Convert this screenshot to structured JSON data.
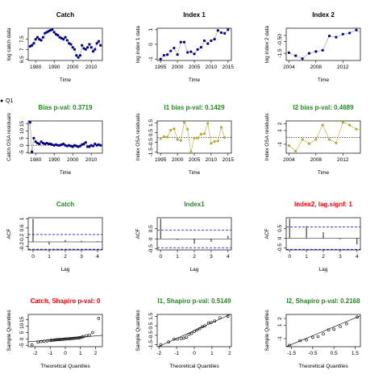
{
  "legend": {
    "marker": "●",
    "label": "Q1"
  },
  "colors": {
    "black": "#000000",
    "navy": "#00008b",
    "green": "#228b22",
    "red": "#ff0000",
    "blue": "#0000ff",
    "olive": "#b8a93a",
    "grey": "#999999"
  },
  "chart_data": [
    {
      "id": "catch",
      "type": "line",
      "title": "Catch",
      "title_color": "black",
      "xlabel": "Time",
      "ylabel": "log catch data",
      "xlim": [
        1976,
        2016
      ],
      "xticks": [
        1980,
        1990,
        2000,
        2010
      ],
      "ylim": [
        6.45,
        8.05
      ],
      "yticks": [
        6.5,
        7.0,
        7.5
      ],
      "points": [
        [
          1977,
          7.15
        ],
        [
          1978,
          7.2
        ],
        [
          1979,
          7.3
        ],
        [
          1980,
          7.5
        ],
        [
          1981,
          7.6
        ],
        [
          1982,
          7.5
        ],
        [
          1983,
          7.45
        ],
        [
          1984,
          7.6
        ],
        [
          1985,
          7.8
        ],
        [
          1986,
          7.85
        ],
        [
          1987,
          7.9
        ],
        [
          1988,
          7.95
        ],
        [
          1989,
          7.98
        ],
        [
          1990,
          7.85
        ],
        [
          1991,
          7.75
        ],
        [
          1992,
          7.7
        ],
        [
          1993,
          7.6
        ],
        [
          1994,
          7.55
        ],
        [
          1995,
          7.5
        ],
        [
          1996,
          7.6
        ],
        [
          1997,
          7.45
        ],
        [
          1998,
          7.3
        ],
        [
          1999,
          7.25
        ],
        [
          2000,
          7.1
        ],
        [
          2001,
          7.0
        ],
        [
          2002,
          6.7
        ],
        [
          2003,
          6.6
        ],
        [
          2004,
          6.7
        ],
        [
          2005,
          7.2
        ],
        [
          2006,
          7.05
        ],
        [
          2007,
          7.0
        ],
        [
          2008,
          7.1
        ],
        [
          2009,
          7.25
        ],
        [
          2010,
          7.1
        ],
        [
          2011,
          6.9
        ],
        [
          2012,
          7.0
        ],
        [
          2013,
          7.3
        ],
        [
          2014,
          7.4
        ],
        [
          2015,
          7.2
        ]
      ]
    },
    {
      "id": "index1",
      "type": "line",
      "title": "Index 1",
      "title_color": "black",
      "xlabel": "Time",
      "ylabel": "log index 1 data",
      "xlim": [
        1994,
        2016
      ],
      "xticks": [
        1995,
        2000,
        2005,
        2010,
        2015
      ],
      "ylim": [
        -1.1,
        1.1
      ],
      "yticks": [
        -1.0,
        0.0,
        1.0
      ],
      "points": [
        [
          1995,
          -1.0
        ],
        [
          1996,
          -0.75
        ],
        [
          1997,
          -0.7
        ],
        [
          1998,
          -0.45
        ],
        [
          1999,
          -0.25
        ],
        [
          2000,
          -0.7
        ],
        [
          2001,
          0.15
        ],
        [
          2002,
          0.15
        ],
        [
          2003,
          -0.55
        ],
        [
          2004,
          -0.5
        ],
        [
          2005,
          -0.65
        ],
        [
          2006,
          -0.35
        ],
        [
          2007,
          -0.2
        ],
        [
          2008,
          0.25
        ],
        [
          2009,
          0.05
        ],
        [
          2010,
          0.25
        ],
        [
          2011,
          0.35
        ],
        [
          2012,
          0.95
        ],
        [
          2013,
          0.8
        ],
        [
          2014,
          0.75
        ],
        [
          2015,
          1.0
        ]
      ]
    },
    {
      "id": "index2",
      "type": "line",
      "title": "Index 2",
      "title_color": "black",
      "xlabel": "Time",
      "ylabel": "log index 2 data",
      "xlim": [
        2003.6,
        2014.6
      ],
      "xticks": [
        2004,
        2008,
        2012
      ],
      "ylim": [
        -2.1,
        0.6
      ],
      "yticks": [
        -1.5,
        -0.5,
        0.0
      ],
      "points": [
        [
          2004,
          -1.45
        ],
        [
          2005,
          -1.7
        ],
        [
          2006,
          -1.95
        ],
        [
          2007,
          -1.5
        ],
        [
          2008,
          -1.35
        ],
        [
          2009,
          -1.25
        ],
        [
          2010,
          -0.05
        ],
        [
          2011,
          -0.15
        ],
        [
          2012,
          0.1
        ],
        [
          2013,
          0.2
        ],
        [
          2014,
          0.45
        ],
        [
          2015,
          0.05
        ]
      ]
    },
    {
      "id": "catch_resid",
      "type": "scatter",
      "title": "Bias p-val: 0.3719",
      "title_color": "green",
      "xlabel": "Time",
      "ylabel": "Catch OSA residuals",
      "xlim": [
        1976,
        2016
      ],
      "xticks": [
        1980,
        1990,
        2000,
        2010
      ],
      "ylim": [
        -5.5,
        17
      ],
      "yticks": [
        -5,
        0,
        5,
        10,
        15
      ],
      "points": [
        [
          1977,
          16
        ],
        [
          1978,
          -4.5
        ],
        [
          1979,
          5
        ],
        [
          1980,
          2.5
        ],
        [
          1981,
          1.5
        ],
        [
          1982,
          1
        ],
        [
          1983,
          2.5
        ],
        [
          1984,
          1.5
        ],
        [
          1985,
          1
        ],
        [
          1986,
          1.5
        ],
        [
          1987,
          1
        ],
        [
          1988,
          1
        ],
        [
          1989,
          0.5
        ],
        [
          1990,
          0
        ],
        [
          1991,
          0.5
        ],
        [
          1992,
          0
        ],
        [
          1993,
          0
        ],
        [
          1994,
          0.5
        ],
        [
          1995,
          1
        ],
        [
          1996,
          0
        ],
        [
          1997,
          -0.5
        ],
        [
          1998,
          0
        ],
        [
          1999,
          -0.5
        ],
        [
          2000,
          -1
        ],
        [
          2001,
          0
        ],
        [
          2002,
          -0.5
        ],
        [
          2003,
          -1
        ],
        [
          2004,
          -0.5
        ],
        [
          2005,
          0.5
        ],
        [
          2006,
          1
        ],
        [
          2007,
          2
        ],
        [
          2008,
          -1
        ],
        [
          2009,
          -1
        ],
        [
          2010,
          0
        ],
        [
          2011,
          -0.5
        ],
        [
          2012,
          1
        ],
        [
          2013,
          0
        ],
        [
          2014,
          0.5
        ],
        [
          2015,
          0
        ]
      ]
    },
    {
      "id": "index1_resid",
      "type": "scatter",
      "title": "I1 bias p-val: 0.1429",
      "title_color": "green",
      "xlabel": "Time",
      "ylabel": "Index OSA residuals",
      "xlim": [
        1994,
        2016
      ],
      "xticks": [
        1995,
        2000,
        2005,
        2010,
        2015
      ],
      "ylim": [
        -1.6,
        1.7
      ],
      "yticks": [
        -1.5,
        -0.5,
        0.5,
        1.5
      ],
      "points": [
        [
          1995,
          -0.1
        ],
        [
          1996,
          0.1
        ],
        [
          1997,
          0.05
        ],
        [
          1998,
          0.75
        ],
        [
          1999,
          0.9
        ],
        [
          2000,
          -0.2
        ],
        [
          2001,
          -0.3
        ],
        [
          2002,
          1.55
        ],
        [
          2003,
          0.85
        ],
        [
          2004,
          -1.5
        ],
        [
          2005,
          -0.05
        ],
        [
          2006,
          -0.05
        ],
        [
          2007,
          0.35
        ],
        [
          2008,
          0.4
        ],
        [
          2009,
          1.45
        ],
        [
          2010,
          -0.6
        ],
        [
          2011,
          -0.4
        ],
        [
          2012,
          -0.35
        ],
        [
          2013,
          1.05
        ],
        [
          2014,
          0.0
        ]
      ]
    },
    {
      "id": "index2_resid",
      "type": "scatter",
      "title": "I2 bias p-val: 0.4689",
      "title_color": "green",
      "xlabel": "Time",
      "ylabel": "Index OSA residuals",
      "xlim": [
        2003.6,
        2014.6
      ],
      "xticks": [
        2004,
        2008,
        2012
      ],
      "ylim": [
        -2.3,
        2.4
      ],
      "yticks": [
        -1,
        1,
        2
      ],
      "points": [
        [
          2004,
          -1.2
        ],
        [
          2005,
          -2.0
        ],
        [
          2006,
          -0.3
        ],
        [
          2007,
          -0.9
        ],
        [
          2008,
          -0.3
        ],
        [
          2009,
          1.8
        ],
        [
          2010,
          -0.3
        ],
        [
          2011,
          -0.8
        ],
        [
          2012,
          2.2
        ],
        [
          2013,
          1.8
        ],
        [
          2014,
          1.2
        ],
        [
          2015,
          1.2
        ],
        [
          2016,
          0.3
        ]
      ]
    },
    {
      "id": "acf_catch",
      "type": "acf",
      "title": "Catch",
      "title_color": "green",
      "xlabel": "Lag",
      "ylabel": "ACF",
      "xlim": [
        -0.3,
        4.3
      ],
      "xticks": [
        0,
        1,
        2,
        3,
        4
      ],
      "ylim": [
        -0.35,
        1.05
      ],
      "yticks": [
        -0.2,
        0.2,
        0.6,
        1.0
      ],
      "lags": [
        0,
        1,
        2,
        3,
        4
      ],
      "values": [
        1.0,
        -0.12,
        0.08,
        0.05,
        0.03
      ],
      "ci": 0.32
    },
    {
      "id": "acf_index1",
      "type": "acf",
      "title": "Index1",
      "title_color": "green",
      "xlabel": "Lag",
      "ylabel": "ACF",
      "xlim": [
        -0.2,
        4.2
      ],
      "xticks": [
        0,
        1,
        2,
        3,
        4
      ],
      "ylim": [
        -0.55,
        1.05
      ],
      "yticks": [
        -0.5,
        0.0,
        0.5
      ],
      "lags": [
        0,
        1,
        2,
        3,
        4
      ],
      "values": [
        1.0,
        -0.05,
        -0.25,
        -0.15,
        0.15
      ],
      "ci": 0.44
    },
    {
      "id": "acf_index2",
      "type": "acf",
      "title": "Index2, lag.signf: 1",
      "title_color": "red",
      "xlabel": "Lag",
      "ylabel": "ACF",
      "xlim": [
        -0.2,
        4.2
      ],
      "xticks": [
        0,
        1,
        2,
        3,
        4
      ],
      "ylim": [
        -0.6,
        1.05
      ],
      "yticks": [
        -0.5,
        0.0,
        0.5
      ],
      "lags": [
        0,
        1,
        2,
        3,
        4
      ],
      "values": [
        1.0,
        0.62,
        0.3,
        -0.05,
        -0.32
      ],
      "ci": 0.57
    },
    {
      "id": "qq_catch",
      "type": "qq",
      "title": "Catch, Shapiro p-val: 0",
      "title_color": "red",
      "xlabel": "Theoretical Quantiles",
      "ylabel": "Sample Quantiles",
      "xlim": [
        -2.45,
        2.45
      ],
      "xticks": [
        -2,
        -1,
        0,
        1,
        2
      ],
      "ylim": [
        -6,
        19
      ],
      "yticks": [
        -5,
        0,
        5,
        10,
        15
      ],
      "points": [
        [
          -2.2,
          -4.5
        ],
        [
          -1.8,
          -2.5
        ],
        [
          -1.6,
          -2
        ],
        [
          -1.4,
          -1.8
        ],
        [
          -1.2,
          -1.5
        ],
        [
          -1.0,
          -1.2
        ],
        [
          -0.9,
          -1
        ],
        [
          -0.8,
          -1
        ],
        [
          -0.7,
          -0.8
        ],
        [
          -0.6,
          -0.7
        ],
        [
          -0.5,
          -0.5
        ],
        [
          -0.4,
          -0.5
        ],
        [
          -0.3,
          -0.4
        ],
        [
          -0.2,
          -0.3
        ],
        [
          -0.1,
          -0.2
        ],
        [
          0.0,
          0
        ],
        [
          0.1,
          0
        ],
        [
          0.2,
          0.1
        ],
        [
          0.3,
          0.2
        ],
        [
          0.4,
          0.3
        ],
        [
          0.5,
          0.4
        ],
        [
          0.6,
          0.5
        ],
        [
          0.7,
          0.6
        ],
        [
          0.8,
          0.7
        ],
        [
          0.9,
          0.9
        ],
        [
          1.0,
          1.1
        ],
        [
          1.1,
          1.5
        ],
        [
          1.2,
          1.8
        ],
        [
          1.4,
          2.5
        ],
        [
          1.6,
          3
        ],
        [
          1.8,
          5
        ],
        [
          2.2,
          16
        ]
      ],
      "ref_line": [
        [
          -2.45,
          -2.2
        ],
        [
          2.45,
          2.8
        ]
      ]
    },
    {
      "id": "qq_index1",
      "type": "qq",
      "title": "I1, Shapiro p-val: 0.5149",
      "title_color": "green",
      "xlabel": "Theoretical Quantiles",
      "ylabel": "Sample Quantiles",
      "xlim": [
        -2.1,
        2.1
      ],
      "xticks": [
        -2,
        -1,
        0,
        1,
        2
      ],
      "ylim": [
        -1.7,
        1.7
      ],
      "yticks": [
        -1.5,
        -0.5,
        0.5,
        1.5
      ],
      "points": [
        [
          -1.9,
          -1.5
        ],
        [
          -1.45,
          -1.2
        ],
        [
          -1.15,
          -0.9
        ],
        [
          -0.95,
          -0.9
        ],
        [
          -0.75,
          -0.85
        ],
        [
          -0.6,
          -0.8
        ],
        [
          -0.45,
          -0.7
        ],
        [
          -0.3,
          -0.4
        ],
        [
          -0.15,
          -0.3
        ],
        [
          0.0,
          -0.1
        ],
        [
          0.15,
          0.05
        ],
        [
          0.3,
          0.2
        ],
        [
          0.45,
          0.4
        ],
        [
          0.6,
          0.5
        ],
        [
          0.8,
          0.8
        ],
        [
          0.95,
          0.85
        ],
        [
          1.15,
          1.0
        ],
        [
          1.45,
          1.35
        ],
        [
          1.9,
          1.5
        ]
      ],
      "ref_line": [
        [
          -2.1,
          -1.75
        ],
        [
          2.1,
          1.75
        ]
      ]
    },
    {
      "id": "qq_index2",
      "type": "qq",
      "title": "I2, Shapiro p-val: 0.2168",
      "title_color": "green",
      "xlabel": "Theoretical Quantiles",
      "ylabel": "Sample Quantiles",
      "xlim": [
        -1.75,
        1.75
      ],
      "xticks": [
        -1.5,
        -0.5,
        0.5,
        1.5
      ],
      "ylim": [
        -2.2,
        2.6
      ],
      "yticks": [
        -1,
        1,
        2
      ],
      "points": [
        [
          -1.6,
          -2.0
        ],
        [
          -1.1,
          -1.3
        ],
        [
          -0.8,
          -1.2
        ],
        [
          -0.5,
          -0.8
        ],
        [
          -0.25,
          -0.7
        ],
        [
          0.0,
          -0.3
        ],
        [
          0.25,
          0.3
        ],
        [
          0.5,
          0.4
        ],
        [
          0.8,
          0.8
        ],
        [
          1.1,
          1.2
        ],
        [
          1.6,
          2.2
        ]
      ],
      "ref_line": [
        [
          -1.75,
          -2.2
        ],
        [
          1.75,
          2.4
        ]
      ]
    }
  ]
}
